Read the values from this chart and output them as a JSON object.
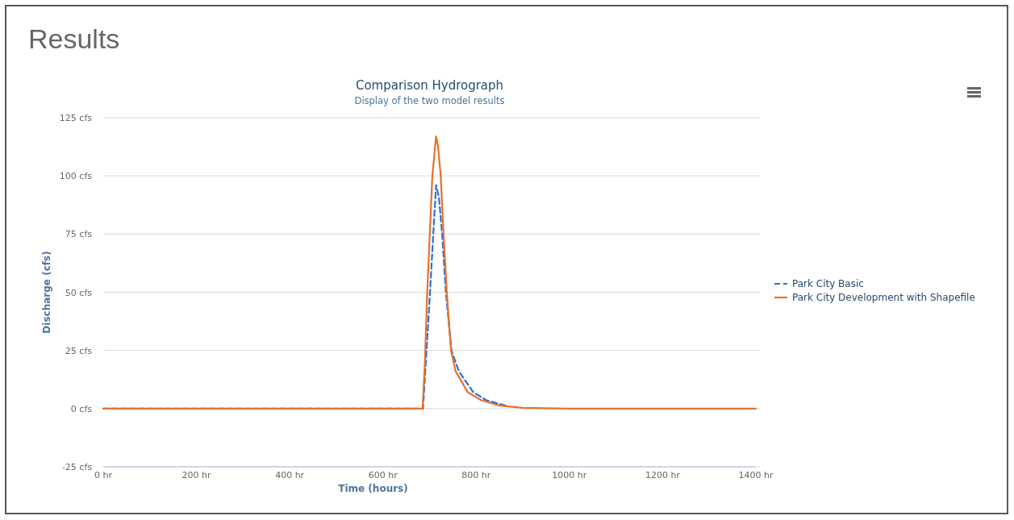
{
  "chart_data": {
    "type": "line",
    "title": "Comparison Hydrograph",
    "subtitle": "Display of the two model results",
    "xlabel": "Time (hours)",
    "ylabel": "Discharge (cfs)",
    "annotations": [
      "Results"
    ],
    "xlim": [
      0,
      1400
    ],
    "ylim": [
      -25,
      125
    ],
    "xticks": [
      {
        "value": 0,
        "label": "0 hr"
      },
      {
        "value": 200,
        "label": "200 hr"
      },
      {
        "value": 400,
        "label": "400 hr"
      },
      {
        "value": 600,
        "label": "600 hr"
      },
      {
        "value": 800,
        "label": "800 hr"
      },
      {
        "value": 1000,
        "label": "1000 hr"
      },
      {
        "value": 1200,
        "label": "1200 hr"
      },
      {
        "value": 1400,
        "label": "1400 hr"
      }
    ],
    "yticks": [
      {
        "value": -25,
        "label": "-25 cfs"
      },
      {
        "value": 0,
        "label": "0 cfs"
      },
      {
        "value": 25,
        "label": "25 cfs"
      },
      {
        "value": 50,
        "label": "50 cfs"
      },
      {
        "value": 75,
        "label": "75 cfs"
      },
      {
        "value": 100,
        "label": "100 cfs"
      },
      {
        "value": 125,
        "label": "125 cfs"
      }
    ],
    "grid": "y",
    "legend": "right",
    "marker": "none",
    "series": [
      {
        "name": "Park City Basic",
        "color": "#2f6fd6",
        "line_style": "dashed",
        "x": [
          0,
          600,
          686,
          692,
          701,
          708,
          714,
          720,
          727,
          735,
          747,
          763,
          794,
          822,
          863
        ],
        "values": [
          0,
          0,
          0,
          20,
          50,
          75,
          96,
          91,
          75,
          50,
          25,
          16,
          7,
          3.6,
          1.3
        ]
      },
      {
        "name": "Park City Development with Shapefile",
        "color": "#e8712a",
        "line_style": "solid",
        "x": [
          0,
          600,
          685,
          690,
          695,
          706,
          714,
          718,
          724,
          730,
          737,
          746,
          756,
          782,
          811,
          851,
          900,
          1000,
          1200,
          1400
        ],
        "values": [
          0,
          0,
          0,
          20,
          50,
          100,
          117,
          113,
          100,
          75,
          50,
          25,
          16,
          7,
          3.6,
          1.3,
          0.3,
          0,
          0,
          0
        ]
      }
    ]
  }
}
